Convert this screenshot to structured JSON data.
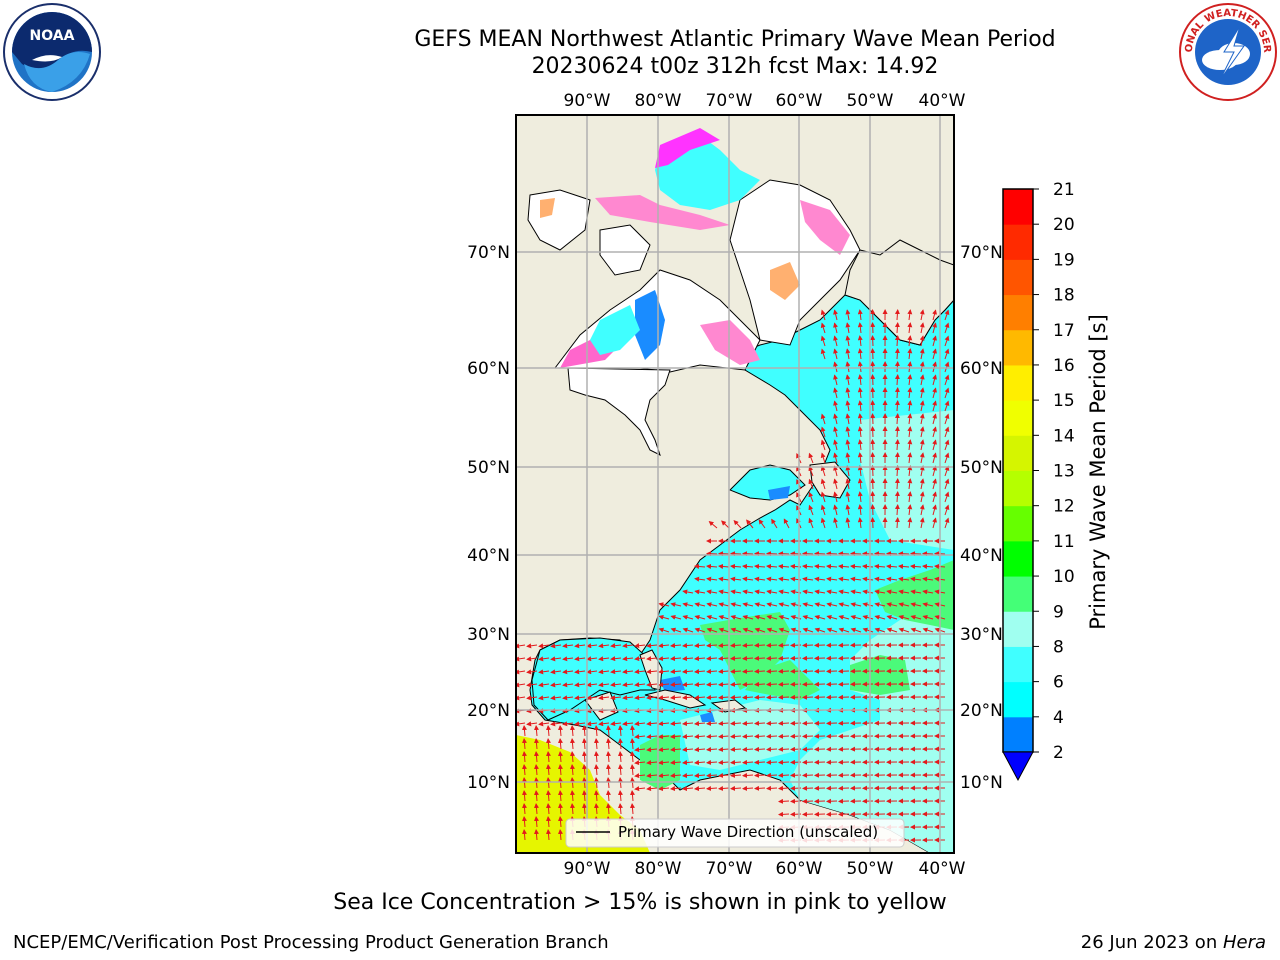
{
  "header": {
    "title_line1": "GEFS MEAN Northwest Atlantic Primary Wave Mean Period",
    "title_line2": "20230624 t00z 312h fcst   Max: 14.92"
  },
  "logos": {
    "left": "noaa-logo",
    "right": "national-weather-service-logo",
    "left_text": "NOAA",
    "right_text": "NATIONAL WEATHER SERVICE"
  },
  "map": {
    "lon_labels": [
      "90°W",
      "80°W",
      "70°W",
      "60°W",
      "50°W",
      "40°W"
    ],
    "lat_labels": [
      "70°N",
      "60°N",
      "50°N",
      "40°N",
      "30°N",
      "20°N",
      "10°N"
    ],
    "legend_label": "Primary Wave Direction (unscaled)",
    "colors": {
      "land": "#efedde",
      "gridline": "#b0b0b0",
      "arrow": "#e31a1c",
      "ice_pink": "#ff66cc",
      "ice_magenta": "#ff33ff",
      "ice_orange": "#ffb070",
      "ocean_4_6": "#00ffff",
      "ocean_6_8": "#40ffff",
      "ocean_8_9": "#a0fff0",
      "ocean_9_10": "#4bfa7a",
      "ocean_13_15": "#ccff00"
    }
  },
  "colorbar": {
    "title": "Primary Wave Mean Period [s]",
    "tick_labels": [
      "21",
      "20",
      "19",
      "18",
      "17",
      "16",
      "15",
      "14",
      "13",
      "12",
      "11",
      "10",
      "9",
      "8",
      "6",
      "4",
      "2"
    ],
    "colors": [
      "#ff0000",
      "#ff2a00",
      "#ff5500",
      "#ff7f00",
      "#ff9900",
      "#ffb900",
      "#ffee00",
      "#f0ff00",
      "#d5f500",
      "#b5ff00",
      "#66ff00",
      "#00ff00",
      "#44ff77",
      "#4bfa7a",
      "#a0fff0",
      "#40ffff",
      "#00ffff",
      "#0080ff",
      "#0000ff"
    ]
  },
  "footnotes": {
    "sea_ice_note": "Sea Ice Concentration > 15% is shown in pink to yellow",
    "credit": "NCEP/EMC/Verification Post Processing Product Generation Branch",
    "date": "26 Jun 2023 on ",
    "machine": "Hera"
  }
}
